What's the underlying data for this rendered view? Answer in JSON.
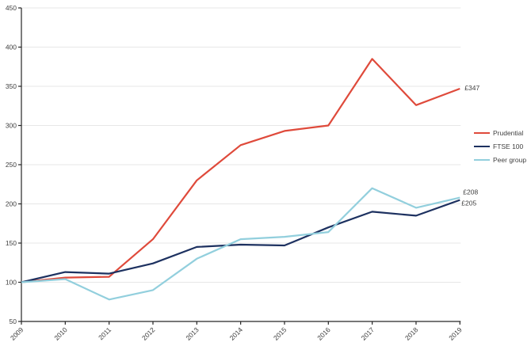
{
  "chart_data": {
    "type": "line",
    "title": "",
    "xlabel": "",
    "ylabel": "",
    "x_labels": [
      "2009",
      "2010",
      "2011",
      "2012",
      "2013",
      "2014",
      "2015",
      "2016",
      "2017",
      "2018",
      "2019"
    ],
    "ylim": [
      50,
      450
    ],
    "ytick_step": 50,
    "grid": true,
    "legend_position": "right-middle",
    "series": [
      {
        "name": "Prudential",
        "color": "#df4a3b",
        "values": [
          100,
          106,
          107,
          155,
          230,
          275,
          293,
          300,
          385,
          326,
          347
        ],
        "end_label": "£347"
      },
      {
        "name": "FTSE 100",
        "color": "#1d3160",
        "values": [
          100,
          113,
          111,
          124,
          145,
          148,
          147,
          170,
          190,
          185,
          205
        ],
        "end_label": "£205"
      },
      {
        "name": "Peer group",
        "color": "#92cfdd",
        "values": [
          100,
          104,
          78,
          90,
          130,
          155,
          158,
          164,
          220,
          195,
          208
        ],
        "end_label": "£208"
      }
    ],
    "colors": {
      "axis": "#262626",
      "gridline": "#e7e7e7",
      "text": "#3f3f3f",
      "background": "#ffffff"
    }
  }
}
